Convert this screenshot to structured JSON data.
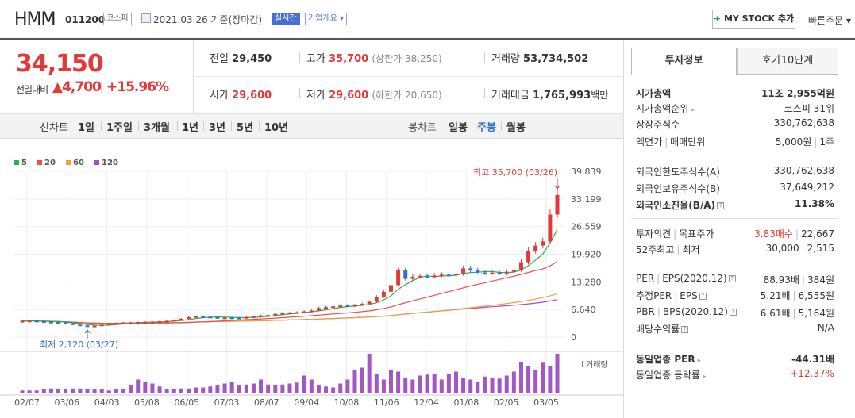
{
  "header": {
    "stock_name": "HMM",
    "stock_code": "011200",
    "market": "코스피",
    "date_text": "2021.03.26 기준(장마감)",
    "realtime_tag": "실시간",
    "company_tag": "기업개요 ▾",
    "mystock_label": "MY STOCK 추가",
    "mystock_plus": "+",
    "quick_order": "빠른주문 ▾"
  },
  "price": {
    "current": "34,150",
    "change_label": "전일대비",
    "change_value": "▲4,700",
    "change_rate": "+15.96%",
    "prev_close_label": "전일",
    "prev_close": "29,450",
    "high_label": "고가",
    "high": "35,700",
    "upper_limit": "(상한가 38,250)",
    "volume_label": "거래량",
    "volume": "53,734,502",
    "open_label": "시가",
    "open": "29,600",
    "low_label": "저가",
    "low": "29,600",
    "lower_limit": "(하한가 20,650)",
    "amount_label": "거래대금",
    "amount": "1,765,993",
    "amount_unit": "백만"
  },
  "toolbar": {
    "line_label": "선차트",
    "periods": [
      "1일",
      "1주일",
      "3개월",
      "1년",
      "3년",
      "5년",
      "10년"
    ],
    "candle_label": "봉차트",
    "candle_periods": [
      "일봉",
      "주봉",
      "월봉"
    ],
    "candle_active": "주봉"
  },
  "chart_data": {
    "type": "candlestick",
    "legend": [
      {
        "name": "5",
        "color": "#2bb24c"
      },
      {
        "name": "20",
        "color": "#e85050"
      },
      {
        "name": "60",
        "color": "#f0a040"
      },
      {
        "name": "120",
        "color": "#a050c0"
      }
    ],
    "y_ticks": [
      "39,839",
      "33,199",
      "26,559",
      "19,920",
      "13,280",
      "6,640",
      "0"
    ],
    "ylim": [
      0,
      39839
    ],
    "x_ticks": [
      "02/07",
      "03/06",
      "04/03",
      "05/08",
      "06/05",
      "07/03",
      "08/07",
      "09/04",
      "10/08",
      "11/06",
      "12/04",
      "01/08",
      "02/05",
      "03/05"
    ],
    "high_annotation": "최고 35,700 (03/26)",
    "low_annotation": "최저 2,120 (03/27)",
    "volume_label": "거래량",
    "closes": [
      3900,
      3950,
      3800,
      3700,
      3600,
      3500,
      3300,
      3000,
      2800,
      2600,
      2750,
      3000,
      3200,
      3400,
      3500,
      3550,
      3600,
      3650,
      3700,
      3800,
      3900,
      4100,
      4400,
      4800,
      5000,
      4900,
      4800,
      4700,
      4700,
      4650,
      4600,
      4800,
      5000,
      5200,
      5300,
      5600,
      5800,
      5900,
      6000,
      6200,
      6400,
      7000,
      7200,
      7400,
      7600,
      7500,
      7700,
      8000,
      8500,
      9700,
      10900,
      12500,
      16000,
      14000,
      14500,
      14700,
      14500,
      14800,
      15000,
      14800,
      15200,
      16500,
      16000,
      15500,
      15400,
      15500,
      15300,
      15700,
      16200,
      18000,
      20700,
      22000,
      23000,
      29450,
      34150
    ],
    "volumes": [
      3,
      3,
      3,
      4,
      5,
      4,
      4,
      5,
      5,
      4,
      4,
      4,
      3,
      4,
      4,
      8,
      14,
      12,
      10,
      7,
      4,
      4,
      5,
      5,
      6,
      6,
      7,
      8,
      10,
      12,
      8,
      9,
      10,
      14,
      9,
      8,
      9,
      10,
      11,
      18,
      14,
      8,
      7,
      6,
      10,
      14,
      24,
      26,
      40,
      20,
      14,
      24,
      22,
      16,
      14,
      18,
      19,
      20,
      14,
      20,
      22,
      16,
      14,
      12,
      17,
      16,
      15,
      18,
      22,
      32,
      28,
      24,
      31,
      28,
      40
    ]
  },
  "right_panel": {
    "tab_invest": "투자정보",
    "tab_orderbook": "호가10단계",
    "market_cap_label": "시가총액",
    "market_cap": "11조 2,955억원",
    "market_cap_rank_label": "시가총액순위",
    "market_cap_rank": "코스피 31위",
    "shares_label": "상장주식수",
    "shares": "330,762,638",
    "par_label": "액면가",
    "trade_unit_label": "매매단위",
    "par": "5,000원",
    "trade_unit": "1주",
    "foreign_limit_label": "외국인한도주식수(A)",
    "foreign_limit": "330,762,638",
    "foreign_held_label": "외국인보유주식수(B)",
    "foreign_held": "37,649,212",
    "foreign_ratio_label": "외국인소진율(B/A)",
    "foreign_ratio": "11.38%",
    "opinion_label": "투자의견",
    "target_label": "목표주가",
    "opinion": "3.83매수",
    "target": "22,667",
    "w52_high_label": "52주최고",
    "w52_low_label": "최저",
    "w52_high": "30,000",
    "w52_low": "2,515",
    "per_label": "PER",
    "eps_label": "EPS(2020.12)",
    "per": "88.93배",
    "eps": "384원",
    "est_per_label": "추정PER",
    "est_eps_label": "EPS",
    "est_per": "5.21배",
    "est_eps": "6,555원",
    "pbr_label": "PBR",
    "bps_label": "BPS(2020.12)",
    "pbr": "6.61배",
    "bps": "5,164원",
    "dividend_label": "배당수익률",
    "dividend": "N/A",
    "industry_per_label": "동일업종 PER",
    "industry_per": "-44.31배",
    "industry_change_label": "동일업종 등락률",
    "industry_change": "+12.37%"
  }
}
